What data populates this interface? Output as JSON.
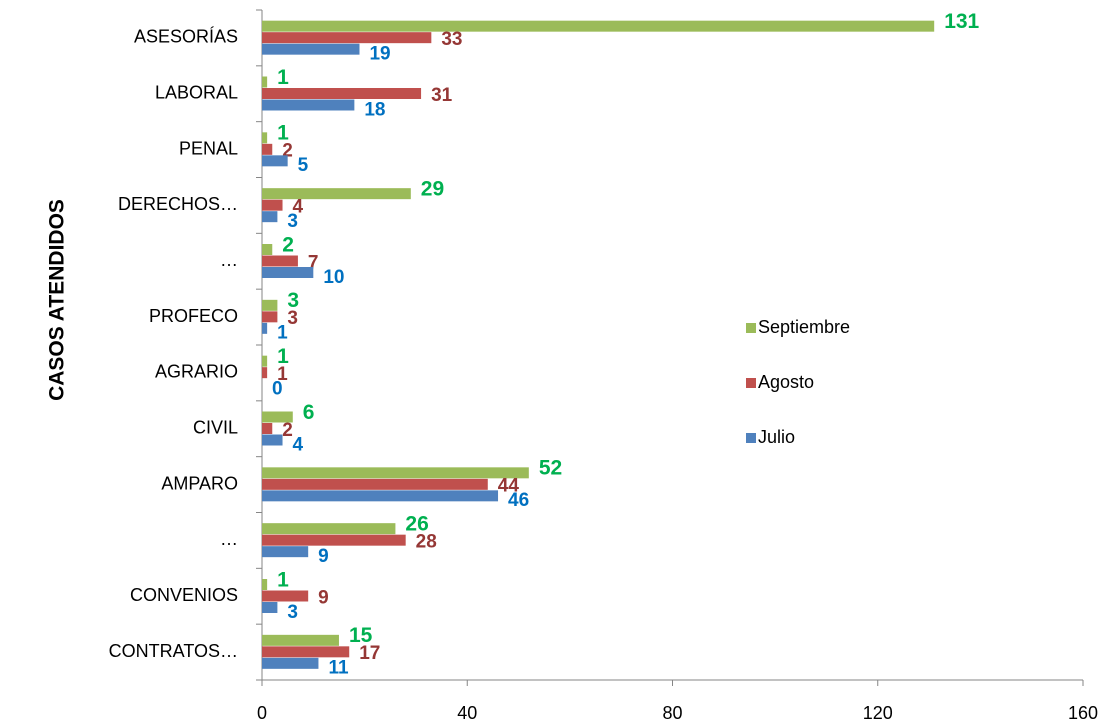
{
  "chart_data": {
    "type": "bar",
    "orientation": "horizontal",
    "y_axis_label": "CASOS ATENDIDOS",
    "categories": [
      "ASESORÍAS",
      "LABORAL",
      "PENAL",
      "DERECHOS…",
      "…",
      "PROFECO",
      "AGRARIO",
      "CIVIL",
      "AMPARO",
      "…",
      "CONVENIOS",
      "CONTRATOS…"
    ],
    "series": [
      {
        "name": "Septiembre",
        "color": "#9bbb59",
        "label_color": "#00b050",
        "values": [
          131,
          1,
          1,
          29,
          2,
          3,
          1,
          6,
          52,
          26,
          1,
          15
        ]
      },
      {
        "name": "Agosto",
        "color": "#c0504d",
        "label_color": "#953735",
        "values": [
          33,
          31,
          2,
          4,
          7,
          3,
          1,
          2,
          44,
          28,
          9,
          17
        ]
      },
      {
        "name": "Julio",
        "color": "#4f81bd",
        "label_color": "#0070c0",
        "values": [
          19,
          18,
          5,
          3,
          10,
          1,
          0,
          4,
          46,
          9,
          3,
          11
        ]
      }
    ],
    "xlim": [
      0,
      160
    ],
    "xticks": [
      0,
      40,
      80,
      120,
      160
    ],
    "grid": false,
    "legend": "right"
  }
}
